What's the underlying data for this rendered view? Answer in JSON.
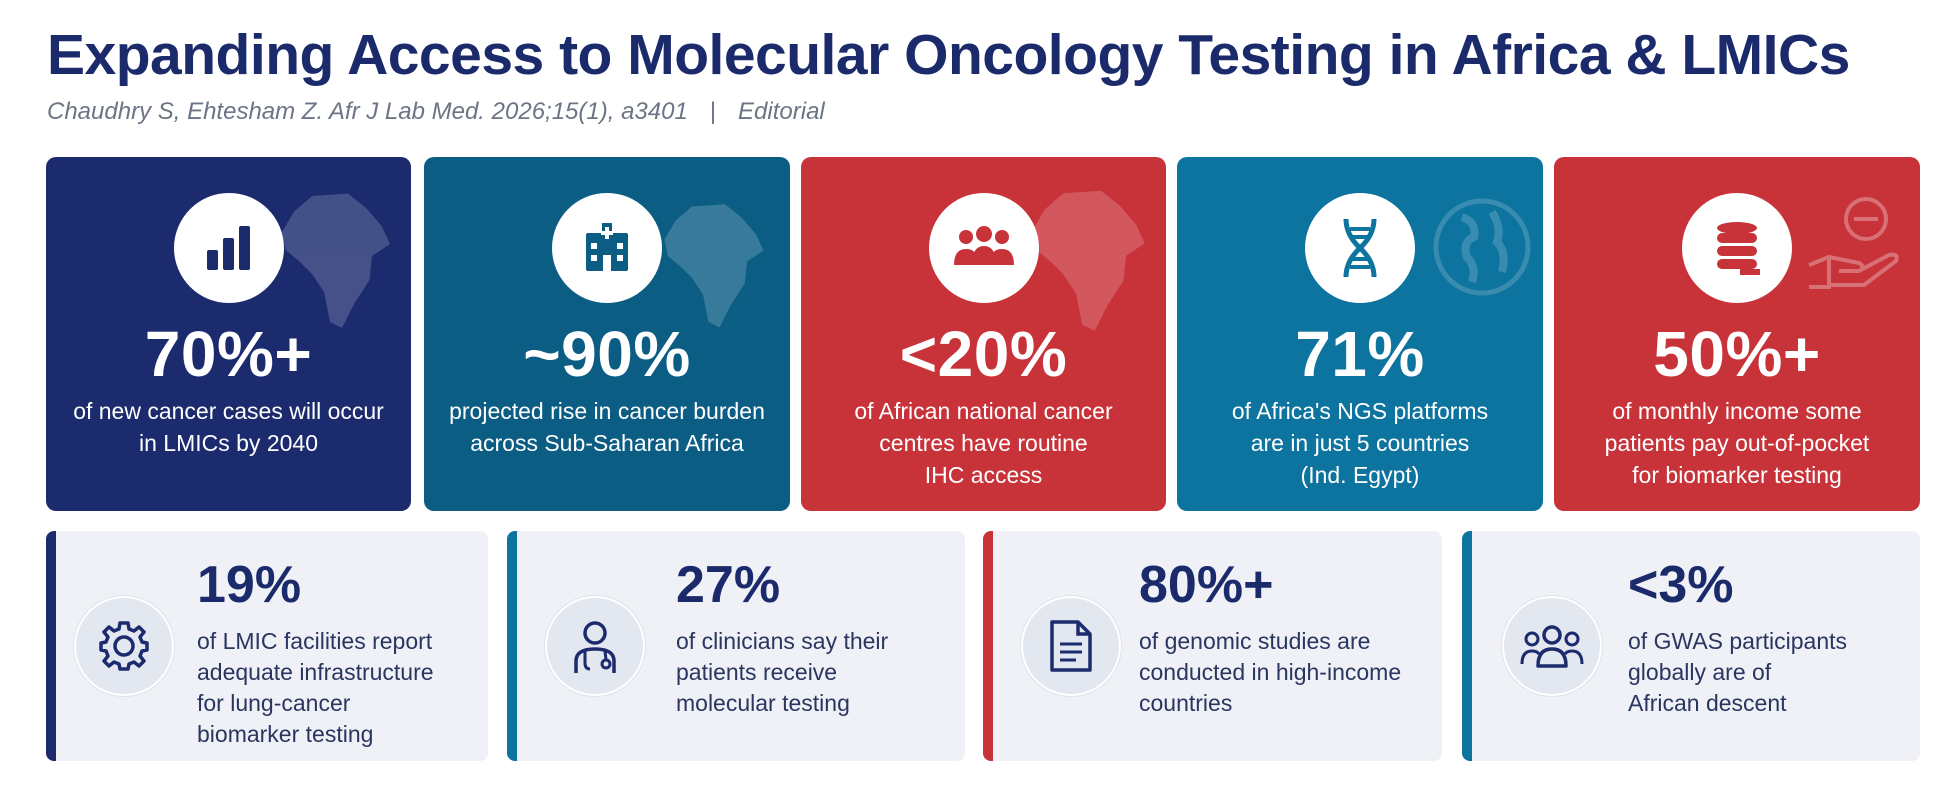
{
  "header": {
    "title": "Expanding Access to Molecular Oncology Testing in Africa & LMICs",
    "citation": "Chaudhry S, Ehtesham Z. Afr J Lab Med. 2026;15(1), a3401",
    "separator": "|",
    "article_type": "Editorial"
  },
  "stats": [
    {
      "value": "70%+",
      "desc_lines": [
        "of new cancer cases will occur",
        "in LMICs by 2040"
      ],
      "icon": "bar-chart-icon",
      "color": "#1c2a6e"
    },
    {
      "value": "~90%",
      "desc_lines": [
        "projected rise in cancer burden",
        "across Sub-Saharan Africa"
      ],
      "icon": "hospital-icon",
      "color": "#0c5d84"
    },
    {
      "value": "<20%",
      "desc_lines": [
        "of African national cancer",
        "centres have routine",
        "IHC access"
      ],
      "icon": "people-group-icon",
      "color": "#c8333a"
    },
    {
      "value": "71%",
      "desc_lines": [
        "of Africa's NGS platforms",
        "are in just 5 countries",
        "(Ind. Egypt)"
      ],
      "icon": "dna-icon",
      "color": "#0d739f"
    },
    {
      "value": "50%+",
      "desc_lines": [
        "of monthly income some",
        "patients pay out-of-pocket",
        "for biomarker testing"
      ],
      "icon": "coins-icon",
      "color": "#c8333a"
    }
  ],
  "facts": [
    {
      "value": "19%",
      "desc_lines": [
        "of LMIC facilities report",
        "adequate infrastructure",
        "for lung-cancer",
        "biomarker testing"
      ],
      "icon": "gear-icon",
      "accent": "#1c2a6e"
    },
    {
      "value": "27%",
      "desc_lines": [
        "of clinicians say their",
        "patients receive",
        "molecular testing"
      ],
      "icon": "clinician-icon",
      "accent": "#0d739f"
    },
    {
      "value": "80%+",
      "desc_lines": [
        "of genomic studies are",
        "conducted in high-income",
        "countries"
      ],
      "icon": "document-icon",
      "accent": "#c8333a"
    },
    {
      "value": "<3%",
      "desc_lines": [
        "of GWAS participants",
        "globally are of",
        "African descent"
      ],
      "icon": "people-icon",
      "accent": "#0d739f"
    }
  ]
}
